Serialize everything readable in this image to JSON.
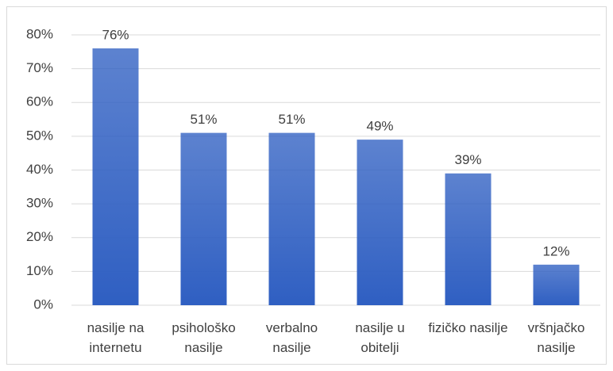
{
  "chart_data": {
    "type": "bar",
    "categories": [
      "nasilje na internetu",
      "psihološko nasilje",
      "verbalno nasilje",
      "nasilje u obitelji",
      "fizičko nasilje",
      "vršnjačko nasilje"
    ],
    "values": [
      76,
      51,
      51,
      49,
      39,
      12
    ],
    "value_labels": [
      "76%",
      "51%",
      "51%",
      "49%",
      "39%",
      "12%"
    ],
    "color": "#2f5fc2",
    "ylim": [
      0,
      80
    ],
    "yticks": [
      {
        "value": 0,
        "label": "0%"
      },
      {
        "value": 10,
        "label": "10%"
      },
      {
        "value": 20,
        "label": "20%"
      },
      {
        "value": 30,
        "label": "30%"
      },
      {
        "value": 40,
        "label": "40%"
      },
      {
        "value": 50,
        "label": "50%"
      },
      {
        "value": 60,
        "label": "60%"
      },
      {
        "value": 70,
        "label": "70%"
      },
      {
        "value": 80,
        "label": "80%"
      }
    ],
    "grid": true
  }
}
